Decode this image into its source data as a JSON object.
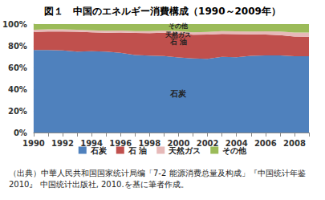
{
  "chart_data": {
    "type": "area",
    "title": "図１　中国のエネルギー消費構成（1990～2009年）",
    "source": "（出典）中華人民共和国国家统计局编「7-2 能源消费总量及构成」『中国统计年鉴2010』 中国统计出版社, 2010.を基に筆者作成。",
    "categories": [
      "1990",
      null,
      "1992",
      null,
      "1994",
      null,
      "1996",
      null,
      "1998",
      null,
      "2000",
      null,
      "2002",
      null,
      "2004",
      null,
      "2006",
      null,
      "2008",
      null
    ],
    "series": [
      {
        "name": "石炭",
        "color": "#4f81bd",
        "values": [
          76.2,
          76.1,
          75.7,
          74.7,
          75.0,
          74.6,
          73.5,
          71.4,
          70.9,
          70.6,
          69.2,
          68.3,
          68.0,
          69.8,
          69.5,
          70.8,
          71.1,
          71.1,
          70.3,
          70.4
        ]
      },
      {
        "name": "石 油",
        "color": "#c0504d",
        "values": [
          16.6,
          17.1,
          17.5,
          18.2,
          17.4,
          17.5,
          18.7,
          20.4,
          20.8,
          21.5,
          22.2,
          21.8,
          22.3,
          21.2,
          21.3,
          19.8,
          19.3,
          18.8,
          18.3,
          17.9
        ]
      },
      {
        "name": "天然ガス",
        "color": "#e6b9b8",
        "values": [
          2.1,
          2.0,
          1.9,
          1.9,
          1.9,
          1.8,
          1.8,
          1.8,
          1.8,
          2.0,
          2.2,
          2.4,
          2.4,
          2.5,
          2.5,
          2.6,
          2.9,
          3.3,
          3.7,
          3.9
        ]
      },
      {
        "name": "その他",
        "color": "#9bbb59",
        "values": [
          5.1,
          4.8,
          4.9,
          5.2,
          5.7,
          6.1,
          6.0,
          6.4,
          6.5,
          5.9,
          6.4,
          7.5,
          7.3,
          6.5,
          6.7,
          6.8,
          6.7,
          6.8,
          7.7,
          7.8
        ]
      }
    ],
    "stacked": true,
    "ylim": [
      0,
      100
    ],
    "yticks": [
      {
        "value": 0,
        "label": "0%"
      },
      {
        "value": 20,
        "label": "20%"
      },
      {
        "value": 40,
        "label": "40%"
      },
      {
        "value": 60,
        "label": "60%"
      },
      {
        "value": 80,
        "label": "80%"
      },
      {
        "value": 100,
        "label": "100%"
      }
    ],
    "grid": true,
    "legend": "bottom"
  }
}
